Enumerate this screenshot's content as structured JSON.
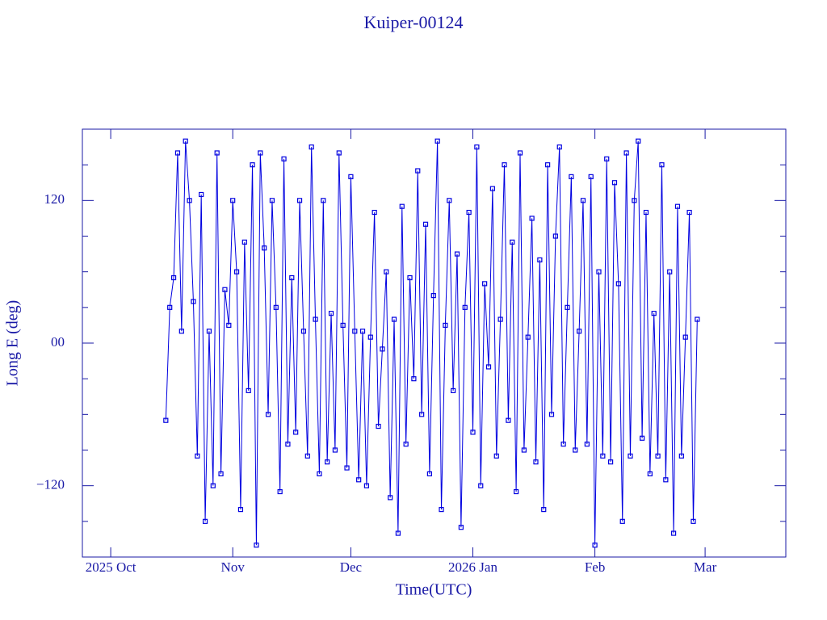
{
  "chart_data": {
    "type": "scatter-line",
    "title": "Kuiper-00124",
    "x_label": "Time(UTC)",
    "y_label": "Long E (deg)",
    "color": "#0000e0",
    "xlim": [
      -7.2,
      171.5
    ],
    "xticks": [
      {
        "value": 0,
        "label": "2025 Oct"
      },
      {
        "value": 31,
        "label": "Nov"
      },
      {
        "value": 61,
        "label": "Dec"
      },
      {
        "value": 92,
        "label": "2026 Jan"
      },
      {
        "value": 123,
        "label": "Feb"
      },
      {
        "value": 151,
        "label": "Mar"
      }
    ],
    "ylim": [
      -180,
      180
    ],
    "yticks": [
      {
        "value": -120,
        "label": "−120"
      },
      {
        "value": 0,
        "label": "00"
      },
      120
    ],
    "yminorticks": [
      -150,
      -90,
      -60,
      -30,
      30,
      60,
      90,
      150
    ],
    "series": [
      {
        "name": "Kuiper-00124",
        "color": "#0000e0",
        "x": [
          14,
          15,
          16,
          17,
          18,
          19,
          20,
          21,
          22,
          23,
          24,
          25,
          26,
          27,
          28,
          29,
          30,
          31,
          32,
          33,
          34,
          35,
          36,
          37,
          38,
          39,
          40,
          41,
          42,
          43,
          44,
          45,
          46,
          47,
          48,
          49,
          50,
          51,
          52,
          53,
          54,
          55,
          56,
          57,
          58,
          59,
          60,
          61,
          62,
          63,
          64,
          65,
          66,
          67,
          68,
          69,
          70,
          71,
          72,
          73,
          74,
          75,
          76,
          77,
          78,
          79,
          80,
          81,
          82,
          83,
          84,
          85,
          86,
          87,
          88,
          89,
          90,
          91,
          92,
          93,
          94,
          95,
          96,
          97,
          98,
          99,
          100,
          101,
          102,
          103,
          104,
          105,
          106,
          107,
          108,
          109,
          110,
          111,
          112,
          113,
          114,
          115,
          116,
          117,
          118,
          119,
          120,
          121,
          122,
          123,
          124,
          125,
          126,
          127,
          128,
          129,
          130,
          131,
          132,
          133,
          134,
          135,
          136,
          137,
          138,
          139,
          140,
          141,
          142,
          143,
          144,
          145,
          146,
          147,
          148,
          149
        ],
        "values": [
          -65,
          30,
          55,
          160,
          10,
          170,
          120,
          35,
          -95,
          125,
          -150,
          10,
          -120,
          160,
          -110,
          45,
          15,
          120,
          60,
          -140,
          85,
          -40,
          150,
          -170,
          160,
          80,
          -60,
          120,
          30,
          -125,
          155,
          -85,
          55,
          -75,
          120,
          10,
          -95,
          165,
          20,
          -110,
          120,
          -100,
          25,
          -90,
          160,
          15,
          -105,
          140,
          10,
          -115,
          10,
          -120,
          5,
          110,
          -70,
          -5,
          60,
          -130,
          20,
          -160,
          115,
          -85,
          55,
          -30,
          145,
          -60,
          100,
          -110,
          40,
          170,
          -140,
          15,
          120,
          -40,
          75,
          -155,
          30,
          110,
          -75,
          165,
          -120,
          50,
          -20,
          130,
          -95,
          20,
          150,
          -65,
          85,
          -125,
          160,
          -90,
          5,
          105,
          -100,
          70,
          -140,
          150,
          -60,
          90,
          165,
          -85,
          30,
          140,
          -90,
          10,
          120,
          -85,
          140,
          -170,
          60,
          -95,
          155,
          -100,
          135,
          50,
          -150,
          160,
          -95,
          120,
          170,
          -80,
          110,
          -110,
          25,
          -95,
          150,
          -115,
          60,
          -160,
          115,
          -95,
          5,
          110,
          -150,
          20
        ]
      }
    ]
  }
}
